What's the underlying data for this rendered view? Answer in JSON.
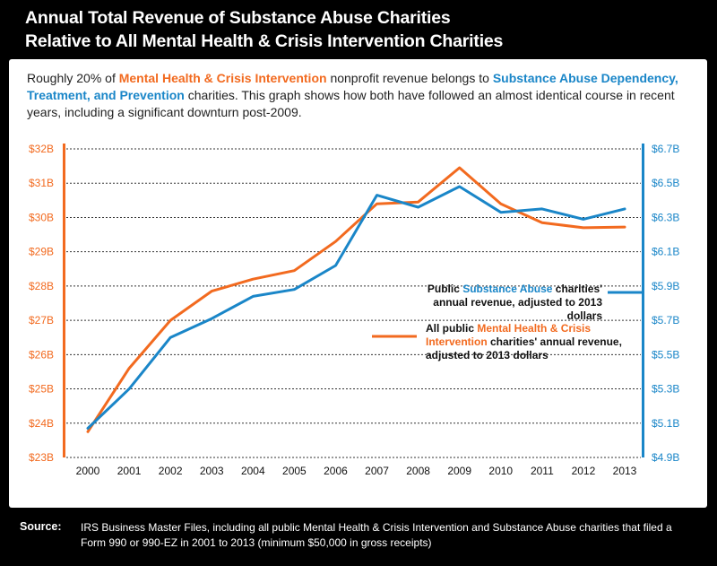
{
  "header": {
    "title_line1": "Annual Total Revenue of Substance Abuse Charities",
    "title_line2": "Relative to All Mental Health & Crisis Intervention Charities"
  },
  "intro": {
    "part1": "Roughly 20% of ",
    "highlight1": "Mental Health & Crisis Intervention",
    "part2": " nonprofit revenue belongs to ",
    "highlight2": "Substance Abuse Dependency, Treatment, and Prevention",
    "part3": " charities. This graph shows how both have followed an almost identical course in recent years, including a significant downturn post-2009."
  },
  "legend": {
    "blue": {
      "pre": "Public ",
      "highlight": "Substance Abuse",
      "post": " charities' annual revenue, adjusted to 2013 dollars"
    },
    "orange": {
      "pre": "All public ",
      "highlight": "Mental Health & Crisis Intervention",
      "post": " charities' annual revenue, adjusted to 2013 dollars"
    }
  },
  "footer": {
    "source_label": "Source:",
    "source_text": "IRS Business Master Files, including all public Mental Health & Crisis Intervention and Substance Abuse charities that filed a Form 990 or 990-EZ in 2001 to 2013 (minimum $50,000 in gross receipts)"
  },
  "chart_data": {
    "type": "line",
    "x": [
      2000,
      2001,
      2002,
      2003,
      2004,
      2005,
      2006,
      2007,
      2008,
      2009,
      2010,
      2011,
      2012,
      2013
    ],
    "left_axis": {
      "ticks": [
        "$23B",
        "$24B",
        "$25B",
        "$26B",
        "$27B",
        "$28B",
        "$29B",
        "$30B",
        "$31B",
        "$32B"
      ],
      "ylim": [
        23,
        32
      ]
    },
    "right_axis": {
      "ticks": [
        "$4.9B",
        "$5.1B",
        "$5.3B",
        "$5.5B",
        "$5.7B",
        "$5.9B",
        "$6.1B",
        "$6.3B",
        "$6.5B",
        "$6.7B"
      ],
      "ylim": [
        4.9,
        6.7
      ]
    },
    "series": [
      {
        "axis": "left",
        "color": "#f26a1f",
        "values": [
          23.75,
          25.6,
          27.0,
          27.85,
          28.2,
          28.45,
          29.3,
          30.4,
          30.45,
          31.45,
          30.4,
          29.85,
          29.7,
          29.72
        ]
      },
      {
        "axis": "right",
        "color": "#1a86c8",
        "values": [
          5.07,
          5.3,
          5.6,
          5.71,
          5.84,
          5.88,
          6.02,
          6.43,
          6.36,
          6.48,
          6.33,
          6.35,
          6.29,
          6.35
        ]
      }
    ],
    "grid": true
  }
}
